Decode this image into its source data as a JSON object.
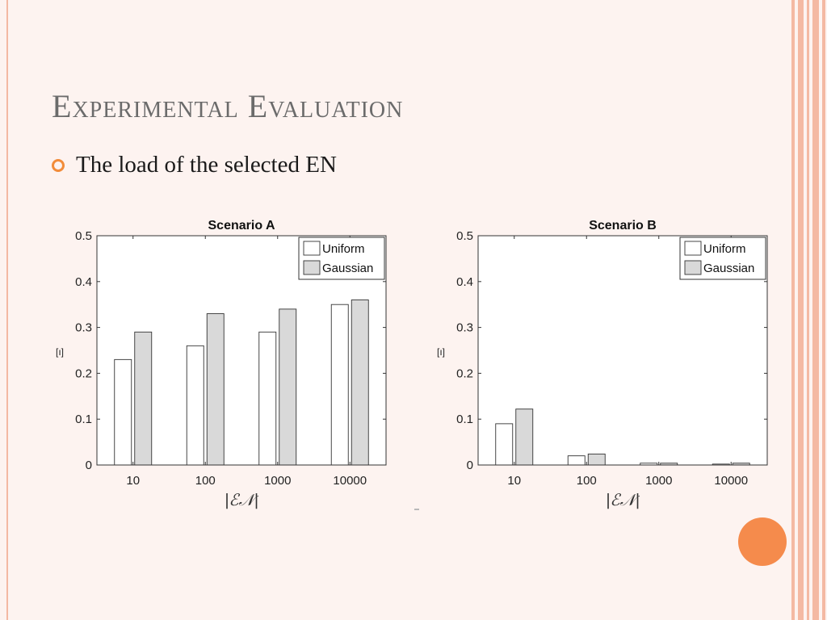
{
  "slide": {
    "title_first": "E",
    "title_first_rest": "xperimental",
    "title_second": "E",
    "title_second_rest": "valuation",
    "bullet": "The load of the selected EN"
  },
  "colors": {
    "background": "#fdf3f0",
    "accent": "#f58b4c",
    "stripe": "#f4b9a3",
    "uniform_fill": "#ffffff",
    "gaussian_fill": "#d9d9d9"
  },
  "chart_data": [
    {
      "type": "bar",
      "title": "Scenario A",
      "categories": [
        "10",
        "100",
        "1000",
        "10000"
      ],
      "series": [
        {
          "name": "Uniform",
          "values": [
            0.23,
            0.26,
            0.29,
            0.35
          ]
        },
        {
          "name": "Gaussian",
          "values": [
            0.29,
            0.33,
            0.34,
            0.36
          ]
        }
      ],
      "xlabel": "|ℰ𝒩|",
      "ylabel": "[ı]",
      "ylim": [
        0,
        0.5
      ],
      "yticks": [
        "0",
        "0.1",
        "0.2",
        "0.3",
        "0.4",
        "0.5"
      ],
      "legend": "top-right"
    },
    {
      "type": "bar",
      "title": "Scenario B",
      "categories": [
        "10",
        "100",
        "1000",
        "10000"
      ],
      "series": [
        {
          "name": "Uniform",
          "values": [
            0.09,
            0.02,
            0.004,
            0.002
          ]
        },
        {
          "name": "Gaussian",
          "values": [
            0.122,
            0.024,
            0.004,
            0.004
          ]
        }
      ],
      "xlabel": "|ℰ𝒩|",
      "ylabel": "[ı]",
      "ylim": [
        0,
        0.5
      ],
      "yticks": [
        "0",
        "0.1",
        "0.2",
        "0.3",
        "0.4",
        "0.5"
      ],
      "legend": "top-right"
    }
  ]
}
